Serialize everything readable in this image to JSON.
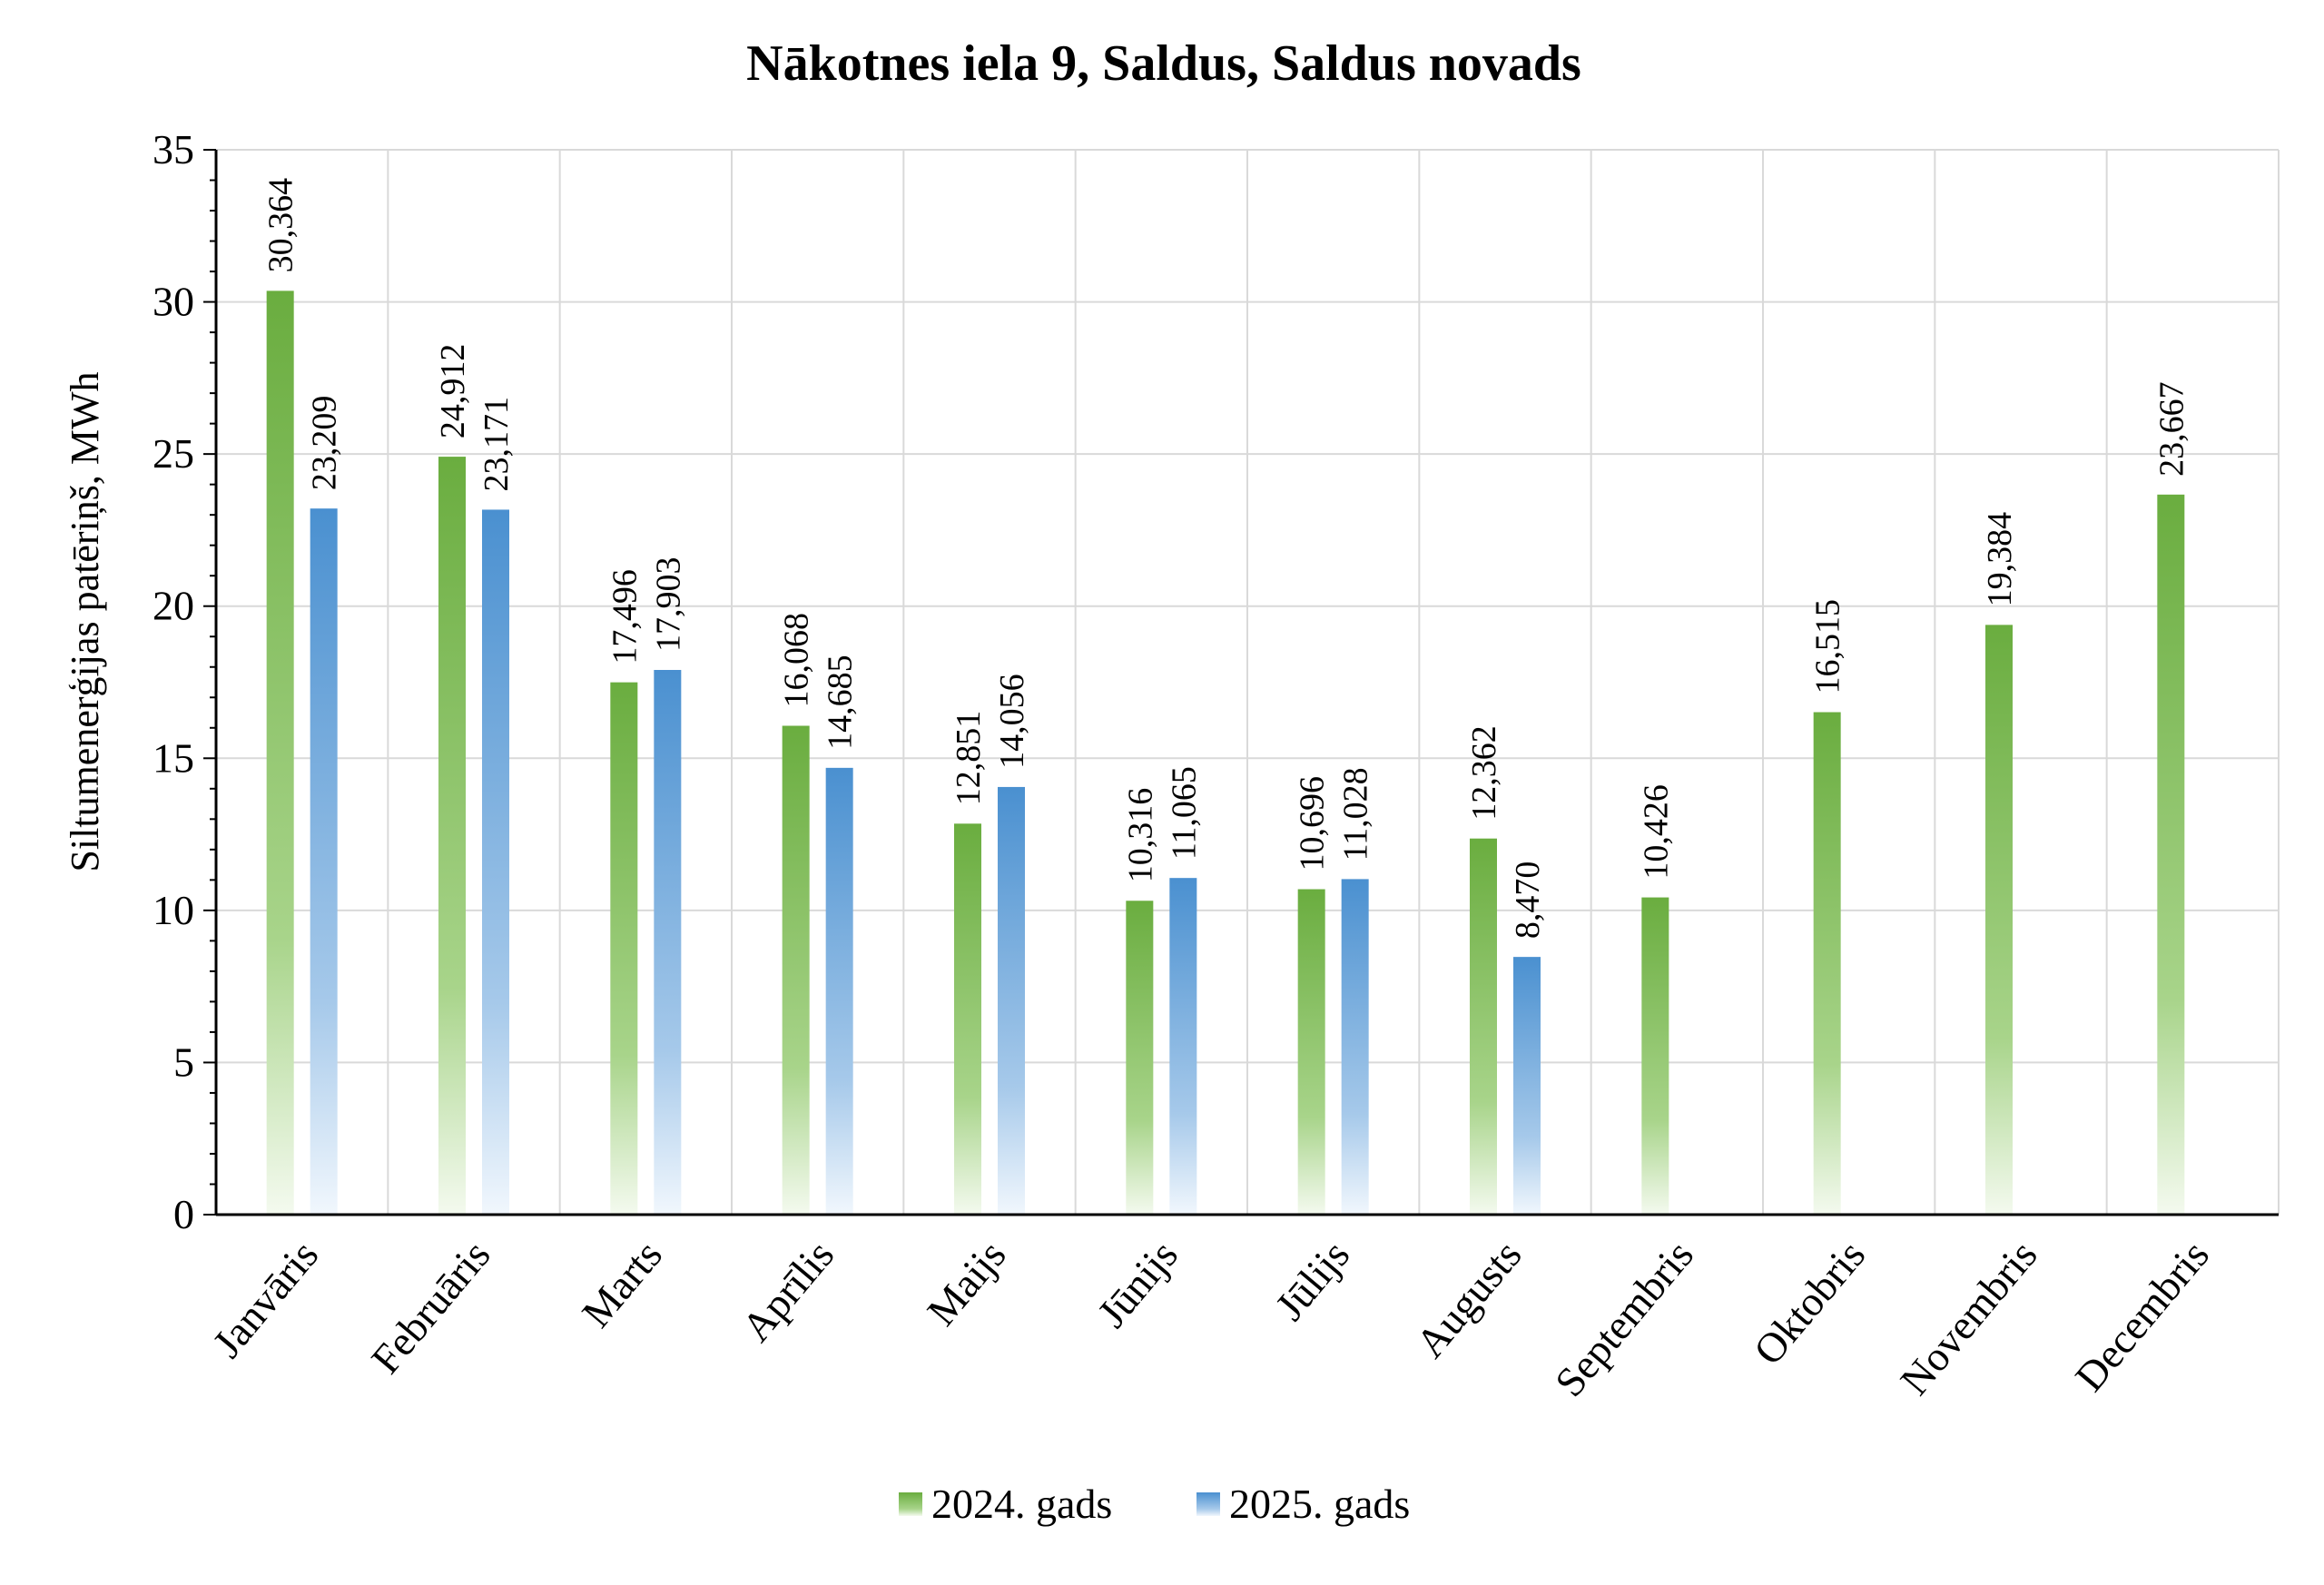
{
  "chart_data": {
    "type": "bar",
    "title": "Nākotnes iela 9, Saldus, Saldus novads",
    "xlabel": "",
    "ylabel": "Siltumenerģijas patēriņš, MWh",
    "ylim": [
      0,
      35
    ],
    "yticks": [
      "0",
      "5",
      "10",
      "15",
      "20",
      "25",
      "30",
      "35"
    ],
    "ytick_values": [
      0,
      5,
      10,
      15,
      20,
      25,
      30,
      35
    ],
    "grid": true,
    "legend_position": "bottom",
    "categories": [
      "Janvāris",
      "Februāris",
      "Marts",
      "Aprīlis",
      "Maijs",
      "Jūnijs",
      "Jūlijs",
      "Augusts",
      "Septembris",
      "Oktobris",
      "Novembris",
      "Decembris"
    ],
    "series": [
      {
        "name": "2024. gads",
        "color": "#74b14b",
        "values": [
          30.364,
          24.912,
          17.496,
          16.068,
          12.851,
          10.316,
          10.696,
          12.362,
          10.426,
          16.515,
          19.384,
          23.667
        ],
        "labels": [
          "30,364",
          "24,912",
          "17,496",
          "16,068",
          "12,851",
          "10,316",
          "10,696",
          "12,362",
          "10,426",
          "16,515",
          "19,384",
          "23,667"
        ]
      },
      {
        "name": "2025. gads",
        "color": "#4f94d4",
        "values": [
          23.209,
          23.171,
          17.903,
          14.685,
          14.056,
          11.065,
          11.028,
          8.47,
          null,
          null,
          null,
          null
        ],
        "labels": [
          "23,209",
          "23,171",
          "17,903",
          "14,685",
          "14,056",
          "11,065",
          "11,028",
          "8,470",
          null,
          null,
          null,
          null
        ]
      }
    ]
  }
}
